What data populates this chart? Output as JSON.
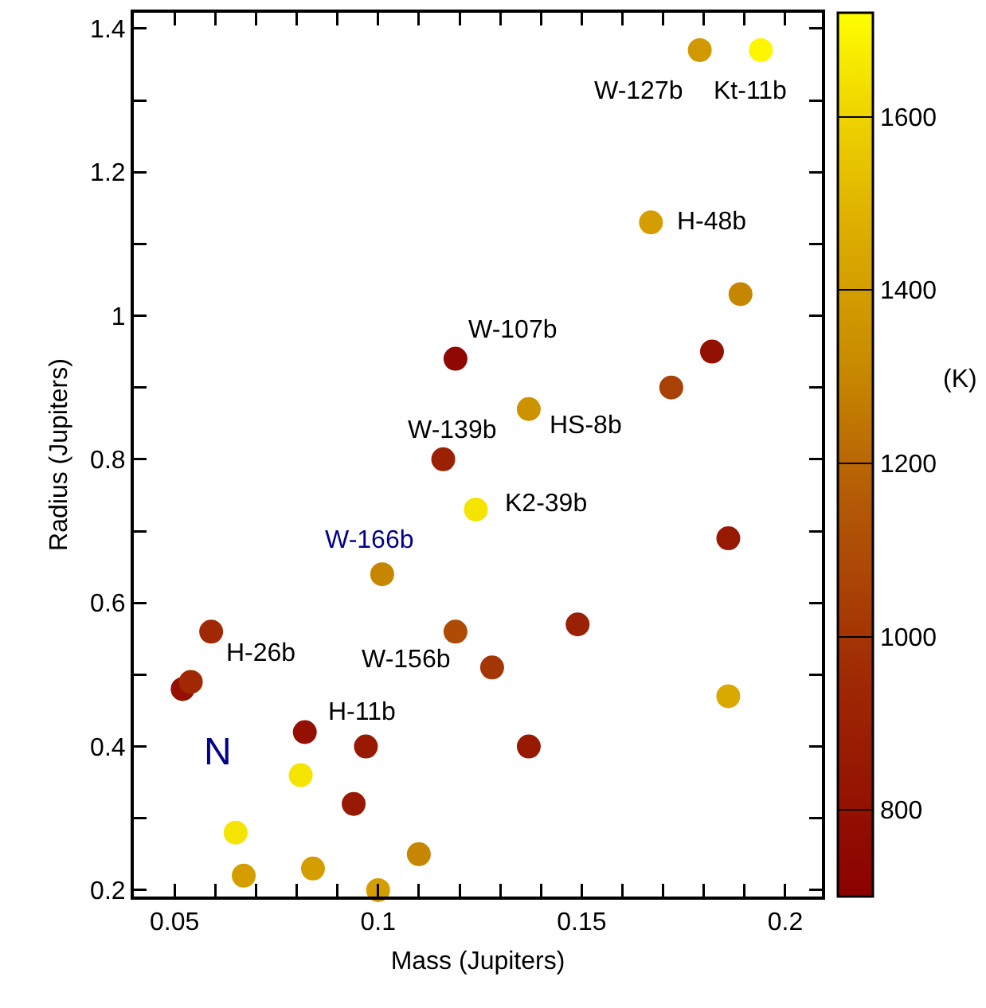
{
  "chart_data": {
    "type": "scatter",
    "xlabel": "Mass (Jupiters)",
    "ylabel": "Radius (Jupiters)",
    "clabel": "(K)",
    "x": [
      0.179,
      0.194,
      0.167,
      0.189,
      0.119,
      0.182,
      0.172,
      0.137,
      0.116,
      0.124,
      0.101,
      0.186,
      0.059,
      0.119,
      0.149,
      0.128,
      0.052,
      0.054,
      0.186,
      0.082,
      0.097,
      0.137,
      0.081,
      0.094,
      0.065,
      0.067,
      0.084,
      0.11,
      0.1
    ],
    "values": [
      1.37,
      1.37,
      1.13,
      1.03,
      0.94,
      0.95,
      0.9,
      0.87,
      0.8,
      0.73,
      0.64,
      0.69,
      0.56,
      0.56,
      0.57,
      0.51,
      0.48,
      0.49,
      0.47,
      0.42,
      0.4,
      0.4,
      0.36,
      0.32,
      0.28,
      0.22,
      0.23,
      0.25,
      0.2
    ],
    "cvalues": [
      1380,
      1700,
      1400,
      1300,
      750,
      800,
      1050,
      1350,
      900,
      1650,
      1300,
      850,
      950,
      1100,
      900,
      1000,
      800,
      950,
      1450,
      800,
      850,
      850,
      1650,
      850,
      1650,
      1400,
      1400,
      1300,
      1400
    ],
    "xlim": [
      0.04,
      0.209
    ],
    "ylim": [
      0.191,
      1.422
    ],
    "xticks": [
      0.05,
      {
        "value": 0.06,
        "label": null
      },
      {
        "value": 0.07,
        "label": null
      },
      {
        "value": 0.08,
        "label": null
      },
      {
        "value": 0.09,
        "label": null
      },
      0.1,
      {
        "value": 0.11,
        "label": null
      },
      {
        "value": 0.12,
        "label": null
      },
      {
        "value": 0.13,
        "label": null
      },
      {
        "value": 0.14,
        "label": null
      },
      0.15,
      {
        "value": 0.16,
        "label": null
      },
      {
        "value": 0.17,
        "label": null
      },
      {
        "value": 0.18,
        "label": null
      },
      {
        "value": 0.19,
        "label": null
      },
      0.2
    ],
    "yticks": [
      0.2,
      {
        "value": 0.3,
        "label": null
      },
      0.4,
      {
        "value": 0.5,
        "label": null
      },
      0.6,
      {
        "value": 0.7,
        "label": null
      },
      0.8,
      {
        "value": 0.9,
        "label": null
      },
      1,
      {
        "value": 1.1,
        "label": null
      },
      1.2,
      {
        "value": 1.3,
        "label": null
      },
      1.4
    ],
    "clim": [
      700,
      1720
    ],
    "cticks": [
      800,
      1000,
      1200,
      1400,
      1600
    ],
    "marker": "circle",
    "grid": false,
    "legend": false,
    "annotations": [
      {
        "text": "W-127b",
        "x": 0.179,
        "y": 1.37
      },
      {
        "text": "Kt-11b",
        "x": 0.194,
        "y": 1.37
      },
      {
        "text": "H-48b",
        "x": 0.167,
        "y": 1.13
      },
      {
        "text": "W-107b",
        "x": 0.119,
        "y": 0.94
      },
      {
        "text": "W-139b",
        "x": 0.116,
        "y": 0.8
      },
      {
        "text": "HS-8b",
        "x": 0.137,
        "y": 0.87
      },
      {
        "text": "K2-39b",
        "x": 0.124,
        "y": 0.73
      },
      {
        "text": "W-166b",
        "x": 0.101,
        "y": 0.64
      },
      {
        "text": "H-26b",
        "x": 0.054,
        "y": 0.49
      },
      {
        "text": "W-156b",
        "x": 0.119,
        "y": 0.56
      },
      {
        "text": "H-11b",
        "x": 0.082,
        "y": 0.42
      },
      "N"
    ]
  }
}
